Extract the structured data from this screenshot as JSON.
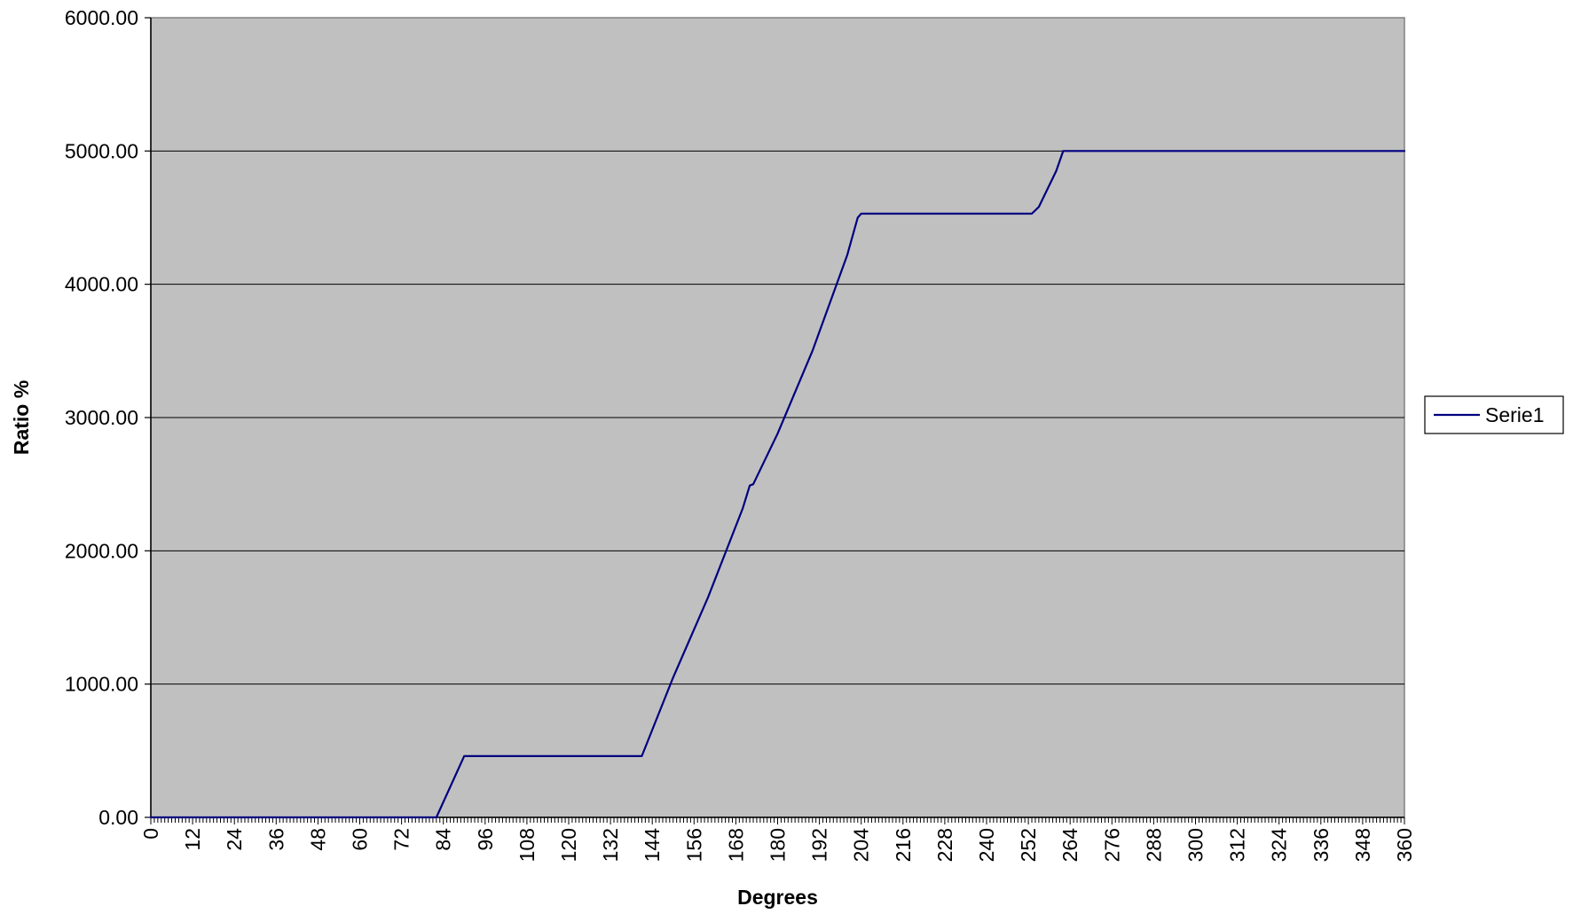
{
  "chart_data": {
    "type": "line",
    "title": "",
    "xlabel": "Degrees",
    "ylabel": "Ratio %",
    "xlim": [
      0,
      360
    ],
    "ylim": [
      0,
      6000
    ],
    "grid": true,
    "legend_position": "right",
    "colors": {
      "plot_background": "#c0c0c0",
      "series_line": "#000080",
      "gridline": "#000000"
    },
    "x_ticks": [
      "0",
      "12",
      "24",
      "36",
      "48",
      "60",
      "72",
      "84",
      "96",
      "108",
      "120",
      "132",
      "144",
      "156",
      "168",
      "180",
      "192",
      "204",
      "216",
      "228",
      "240",
      "252",
      "264",
      "276",
      "288",
      "300",
      "312",
      "324",
      "336",
      "348",
      "360"
    ],
    "y_ticks": [
      "0.00",
      "1000.00",
      "2000.00",
      "3000.00",
      "4000.00",
      "5000.00",
      "6000.00"
    ],
    "series": [
      {
        "name": "Serie1",
        "x": [
          0,
          82,
          90,
          141,
          150,
          160,
          170,
          172,
          173,
          180,
          190,
          200,
          203,
          204,
          252,
          253,
          255,
          260,
          262,
          290,
          310,
          330,
          360
        ],
        "y": [
          0,
          0,
          460,
          460,
          1050,
          1650,
          2320,
          2490,
          2500,
          2880,
          3500,
          4220,
          4500,
          4530,
          4530,
          4530,
          4580,
          4850,
          5000,
          5000,
          5000,
          5000,
          5000
        ]
      }
    ]
  }
}
